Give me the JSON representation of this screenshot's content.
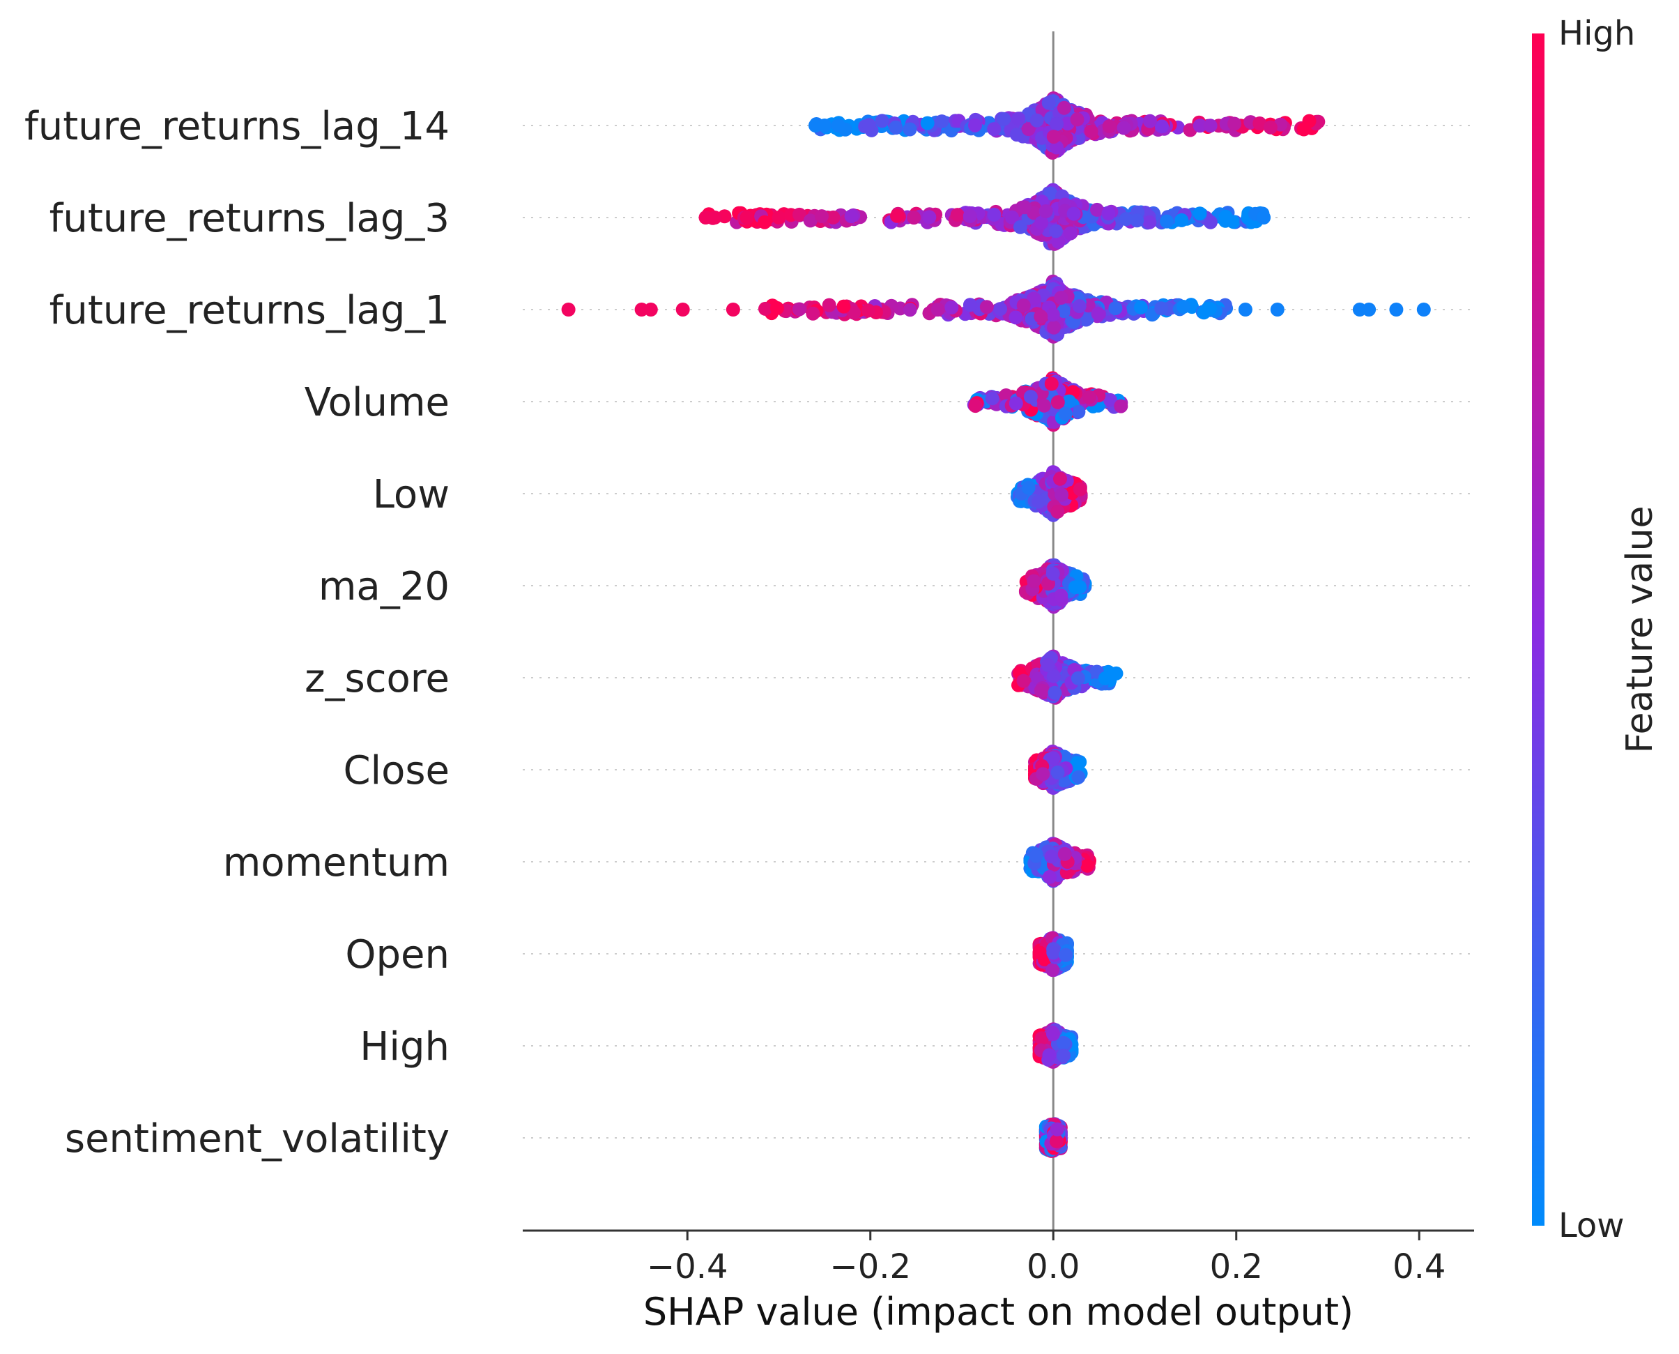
{
  "chart_data": {
    "type": "scatter",
    "subtype": "shap-beeswarm",
    "xlabel": "SHAP value (impact on model output)",
    "xlim": [
      -0.58,
      0.46
    ],
    "xticks": [
      -0.4,
      -0.2,
      0.0,
      0.2,
      0.4
    ],
    "xtick_labels": [
      "−0.4",
      "−0.2",
      "0.0",
      "0.2",
      "0.4"
    ],
    "colorbar": {
      "title": "Feature value",
      "high_label": "High",
      "low_label": "Low",
      "high_color": "#ff0052",
      "mid_color": "#8b2be2",
      "low_color": "#008bfb"
    },
    "features": [
      {
        "name": "future_returns_lag_14",
        "min": -0.26,
        "max": 0.29,
        "center_density": 1.0,
        "blue_side": "left",
        "outliers": [
          {
            "x": -0.26,
            "c": 0.05
          },
          {
            "x": -0.25,
            "c": 0.05
          },
          {
            "x": -0.235,
            "c": 0.05
          }
        ]
      },
      {
        "name": "future_returns_lag_3",
        "min": -0.38,
        "max": 0.23,
        "center_density": 1.0,
        "blue_side": "right",
        "outliers": [
          {
            "x": -0.38,
            "c": 0.95
          },
          {
            "x": -0.37,
            "c": 0.95
          },
          {
            "x": -0.335,
            "c": 0.95
          },
          {
            "x": -0.3,
            "c": 0.95
          },
          {
            "x": 0.23,
            "c": 0.05
          }
        ]
      },
      {
        "name": "future_returns_lag_1",
        "min": -0.32,
        "max": 0.19,
        "center_density": 1.0,
        "blue_side": "right",
        "outliers": [
          {
            "x": -0.53,
            "c": 0.95
          },
          {
            "x": -0.45,
            "c": 0.95
          },
          {
            "x": -0.44,
            "c": 0.95
          },
          {
            "x": -0.405,
            "c": 0.95
          },
          {
            "x": -0.35,
            "c": 0.95
          },
          {
            "x": 0.21,
            "c": 0.05
          },
          {
            "x": 0.245,
            "c": 0.05
          },
          {
            "x": 0.335,
            "c": 0.05
          },
          {
            "x": 0.345,
            "c": 0.05
          },
          {
            "x": 0.375,
            "c": 0.05
          },
          {
            "x": 0.405,
            "c": 0.05
          }
        ]
      },
      {
        "name": "Volume",
        "min": -0.09,
        "max": 0.075,
        "center_density": 0.8,
        "blue_side": "mixed",
        "outliers": []
      },
      {
        "name": "Low",
        "min": -0.04,
        "max": 0.03,
        "center_density": 0.7,
        "blue_side": "left",
        "outliers": []
      },
      {
        "name": "ma_20",
        "min": -0.03,
        "max": 0.035,
        "center_density": 0.7,
        "blue_side": "right",
        "outliers": []
      },
      {
        "name": "z_score",
        "min": -0.04,
        "max": 0.07,
        "center_density": 0.7,
        "blue_side": "right",
        "outliers": []
      },
      {
        "name": "Close",
        "min": -0.02,
        "max": 0.03,
        "center_density": 0.6,
        "blue_side": "right",
        "outliers": []
      },
      {
        "name": "momentum",
        "min": -0.025,
        "max": 0.04,
        "center_density": 0.6,
        "blue_side": "left",
        "outliers": []
      },
      {
        "name": "Open",
        "min": -0.015,
        "max": 0.015,
        "center_density": 0.5,
        "blue_side": "right",
        "outliers": []
      },
      {
        "name": "High",
        "min": -0.015,
        "max": 0.02,
        "center_density": 0.5,
        "blue_side": "right",
        "outliers": []
      },
      {
        "name": "sentiment_volatility",
        "min": -0.008,
        "max": 0.008,
        "center_density": 0.4,
        "blue_side": "mixed",
        "outliers": []
      }
    ]
  }
}
